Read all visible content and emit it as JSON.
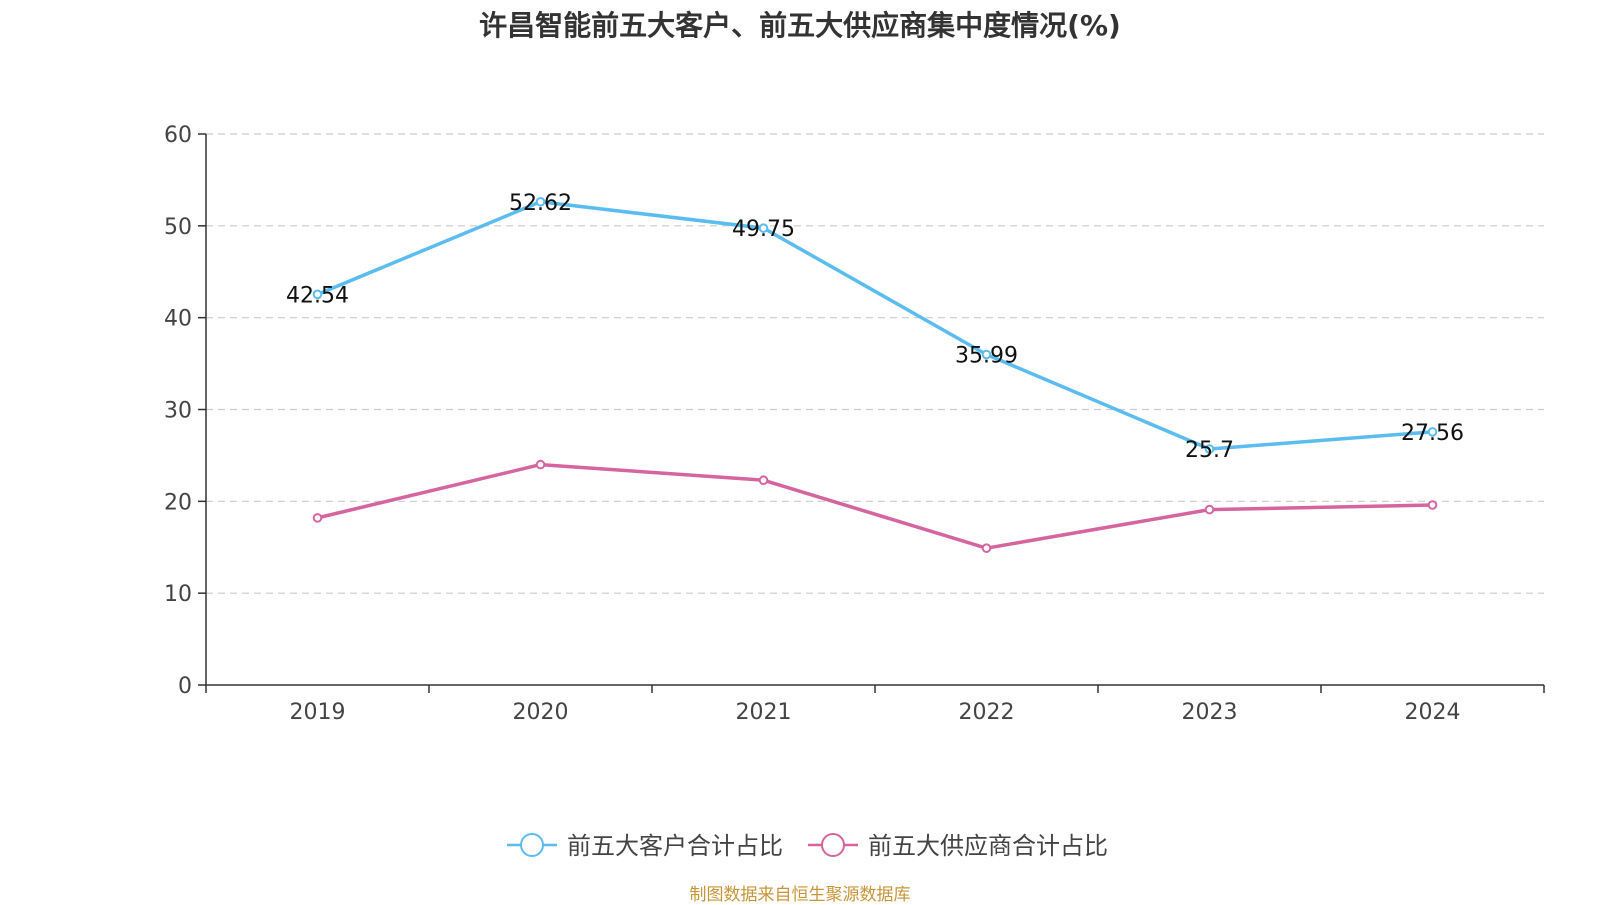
{
  "title": "许昌智能前五大客户、前五大供应商集中度情况(%)",
  "source_note": "制图数据来自恒生聚源数据库",
  "chart_data": {
    "type": "line",
    "title": "许昌智能前五大客户、前五大供应商集中度情况(%)",
    "xlabel": "",
    "ylabel": "",
    "categories": [
      "2019",
      "2020",
      "2021",
      "2022",
      "2023",
      "2024"
    ],
    "ylim": [
      0,
      60
    ],
    "yticks": [
      0,
      10,
      20,
      30,
      40,
      50,
      60
    ],
    "grid": true,
    "legend_position": "bottom-center",
    "series": [
      {
        "name": "前五大客户合计占比",
        "color": "#5bbcf0",
        "values": [
          42.54,
          52.62,
          49.75,
          35.99,
          25.7,
          27.56
        ],
        "labels": [
          "42.54",
          "52.62",
          "49.75",
          "35.99",
          "25.7",
          "27.56"
        ],
        "show_labels": true
      },
      {
        "name": "前五大供应商合计占比",
        "color": "#d6649f",
        "values": [
          18.2,
          24.0,
          22.3,
          14.9,
          19.1,
          19.6
        ],
        "show_labels": false
      }
    ]
  }
}
